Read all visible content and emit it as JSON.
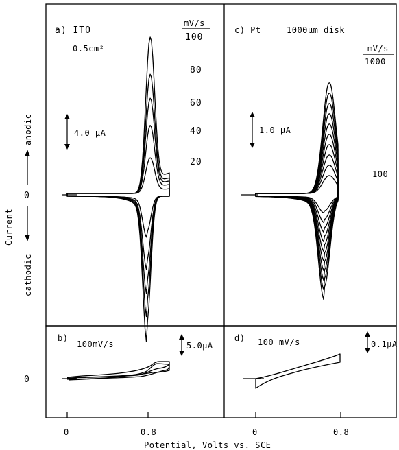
{
  "axis": {
    "x_label": "Potential, Volts vs. SCE",
    "y_label": "Current",
    "anodic": "anodic",
    "cathodic": "cathodic",
    "zero": "0",
    "x_ticks": [
      "0",
      "0.8"
    ]
  },
  "chart_data": [
    {
      "type": "line",
      "panel": "a",
      "title": "a) ITO",
      "subtitle": "0.5cm²",
      "scale_bar": "4.0 μA",
      "legend_header": "mV/s",
      "x_ticks": [
        0,
        0.8
      ],
      "series": [
        {
          "name": "100",
          "peak_anodic_uA": 20.2,
          "peak_cathodic_uA": -16.3
        },
        {
          "name": "80",
          "peak_anodic_uA": 15.4,
          "peak_cathodic_uA": -13.5
        },
        {
          "name": "60",
          "peak_anodic_uA": 12.3,
          "peak_cathodic_uA": -10.9
        },
        {
          "name": "40",
          "peak_anodic_uA": 8.8,
          "peak_cathodic_uA": -8.2
        },
        {
          "name": "20",
          "peak_anodic_uA": 4.6,
          "peak_cathodic_uA": -4.6
        }
      ],
      "peak_potential_V": 0.79
    },
    {
      "type": "line",
      "panel": "c",
      "title": "c) Pt",
      "subtitle": "1000μm disk",
      "scale_bar": "1.0 μA",
      "legend_header": "mV/s",
      "scan_rate_labels": [
        "1000",
        "100"
      ],
      "x_ticks": [
        0,
        0.8
      ],
      "peak_potential_V": 0.79
    },
    {
      "type": "line",
      "panel": "b",
      "title": "b)",
      "scan_rate": "100mV/s",
      "scale_bar": "5.0μA",
      "x_ticks": [
        0,
        0.8
      ]
    },
    {
      "type": "line",
      "panel": "d",
      "title": "d)",
      "scan_rate": "100 mV/s",
      "scale_bar": "0.1μA",
      "x_ticks": [
        0,
        0.8
      ]
    }
  ]
}
